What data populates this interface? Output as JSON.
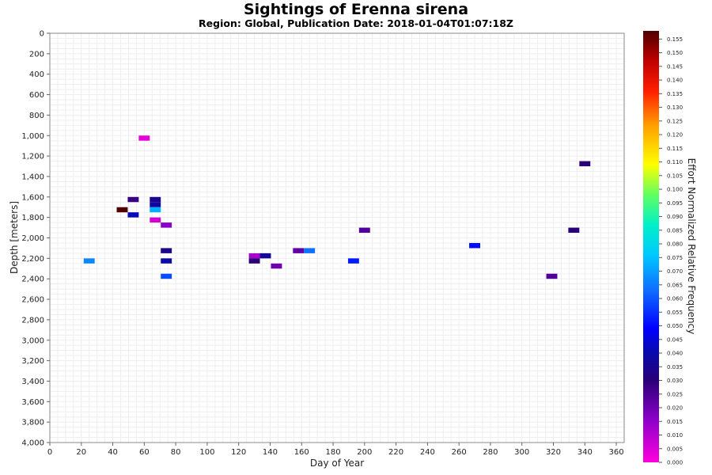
{
  "chart_data": {
    "type": "heatmap",
    "title": "Sightings of Erenna sirena",
    "subtitle": "Region: Global, Publication Date: 2018-01-04T01:07:18Z",
    "xlabel": "Day of Year",
    "ylabel": "Depth [meters]",
    "colorbar_label": "Effort Normalized Relative Frequency",
    "xlim": [
      0,
      365
    ],
    "ylim": [
      0,
      4000
    ],
    "y_inverted": true,
    "grid": true,
    "x_ticks": [
      "0",
      "20",
      "40",
      "60",
      "80",
      "100",
      "120",
      "140",
      "160",
      "180",
      "200",
      "220",
      "240",
      "260",
      "280",
      "300",
      "320",
      "340",
      "360"
    ],
    "y_ticks": [
      "0",
      "200",
      "400",
      "600",
      "800",
      "1,000",
      "1,200",
      "1,400",
      "1,600",
      "1,800",
      "2,000",
      "2,200",
      "2,400",
      "2,600",
      "2,800",
      "3,000",
      "3,200",
      "3,400",
      "3,600",
      "3,800",
      "4,000"
    ],
    "colorbar_ticks": [
      "0.155",
      "0.150",
      "0.145",
      "0.140",
      "0.135",
      "0.130",
      "0.125",
      "0.120",
      "0.115",
      "0.110",
      "0.105",
      "0.100",
      "0.095",
      "0.090",
      "0.085",
      "0.080",
      "0.075",
      "0.070",
      "0.065",
      "0.060",
      "0.055",
      "0.050",
      "0.045",
      "0.040",
      "0.035",
      "0.030",
      "0.025",
      "0.020",
      "0.015",
      "0.010",
      "0.005",
      "0.000"
    ],
    "colorbar_range": [
      0,
      0.158
    ],
    "cell_width_days": 7,
    "cell_height_m": 50,
    "points": [
      {
        "day": 25,
        "depth": 2225,
        "value": 0.066
      },
      {
        "day": 46,
        "depth": 1725,
        "value": 0.158
      },
      {
        "day": 53,
        "depth": 1625,
        "value": 0.028
      },
      {
        "day": 53,
        "depth": 1775,
        "value": 0.042
      },
      {
        "day": 60,
        "depth": 1025,
        "value": 0.003
      },
      {
        "day": 67,
        "depth": 1625,
        "value": 0.035
      },
      {
        "day": 67,
        "depth": 1675,
        "value": 0.038
      },
      {
        "day": 67,
        "depth": 1725,
        "value": 0.072
      },
      {
        "day": 67,
        "depth": 1825,
        "value": 0.006
      },
      {
        "day": 74,
        "depth": 1875,
        "value": 0.016
      },
      {
        "day": 74,
        "depth": 2125,
        "value": 0.034
      },
      {
        "day": 74,
        "depth": 2225,
        "value": 0.04
      },
      {
        "day": 74,
        "depth": 2375,
        "value": 0.058
      },
      {
        "day": 130,
        "depth": 2175,
        "value": 0.012
      },
      {
        "day": 130,
        "depth": 2225,
        "value": 0.03
      },
      {
        "day": 137,
        "depth": 2175,
        "value": 0.036
      },
      {
        "day": 144,
        "depth": 2275,
        "value": 0.02
      },
      {
        "day": 158,
        "depth": 2125,
        "value": 0.022
      },
      {
        "day": 165,
        "depth": 2125,
        "value": 0.062
      },
      {
        "day": 193,
        "depth": 2225,
        "value": 0.052
      },
      {
        "day": 200,
        "depth": 1925,
        "value": 0.024
      },
      {
        "day": 270,
        "depth": 2075,
        "value": 0.05
      },
      {
        "day": 319,
        "depth": 2375,
        "value": 0.024
      },
      {
        "day": 333,
        "depth": 1925,
        "value": 0.03
      },
      {
        "day": 340,
        "depth": 1275,
        "value": 0.03
      }
    ]
  }
}
